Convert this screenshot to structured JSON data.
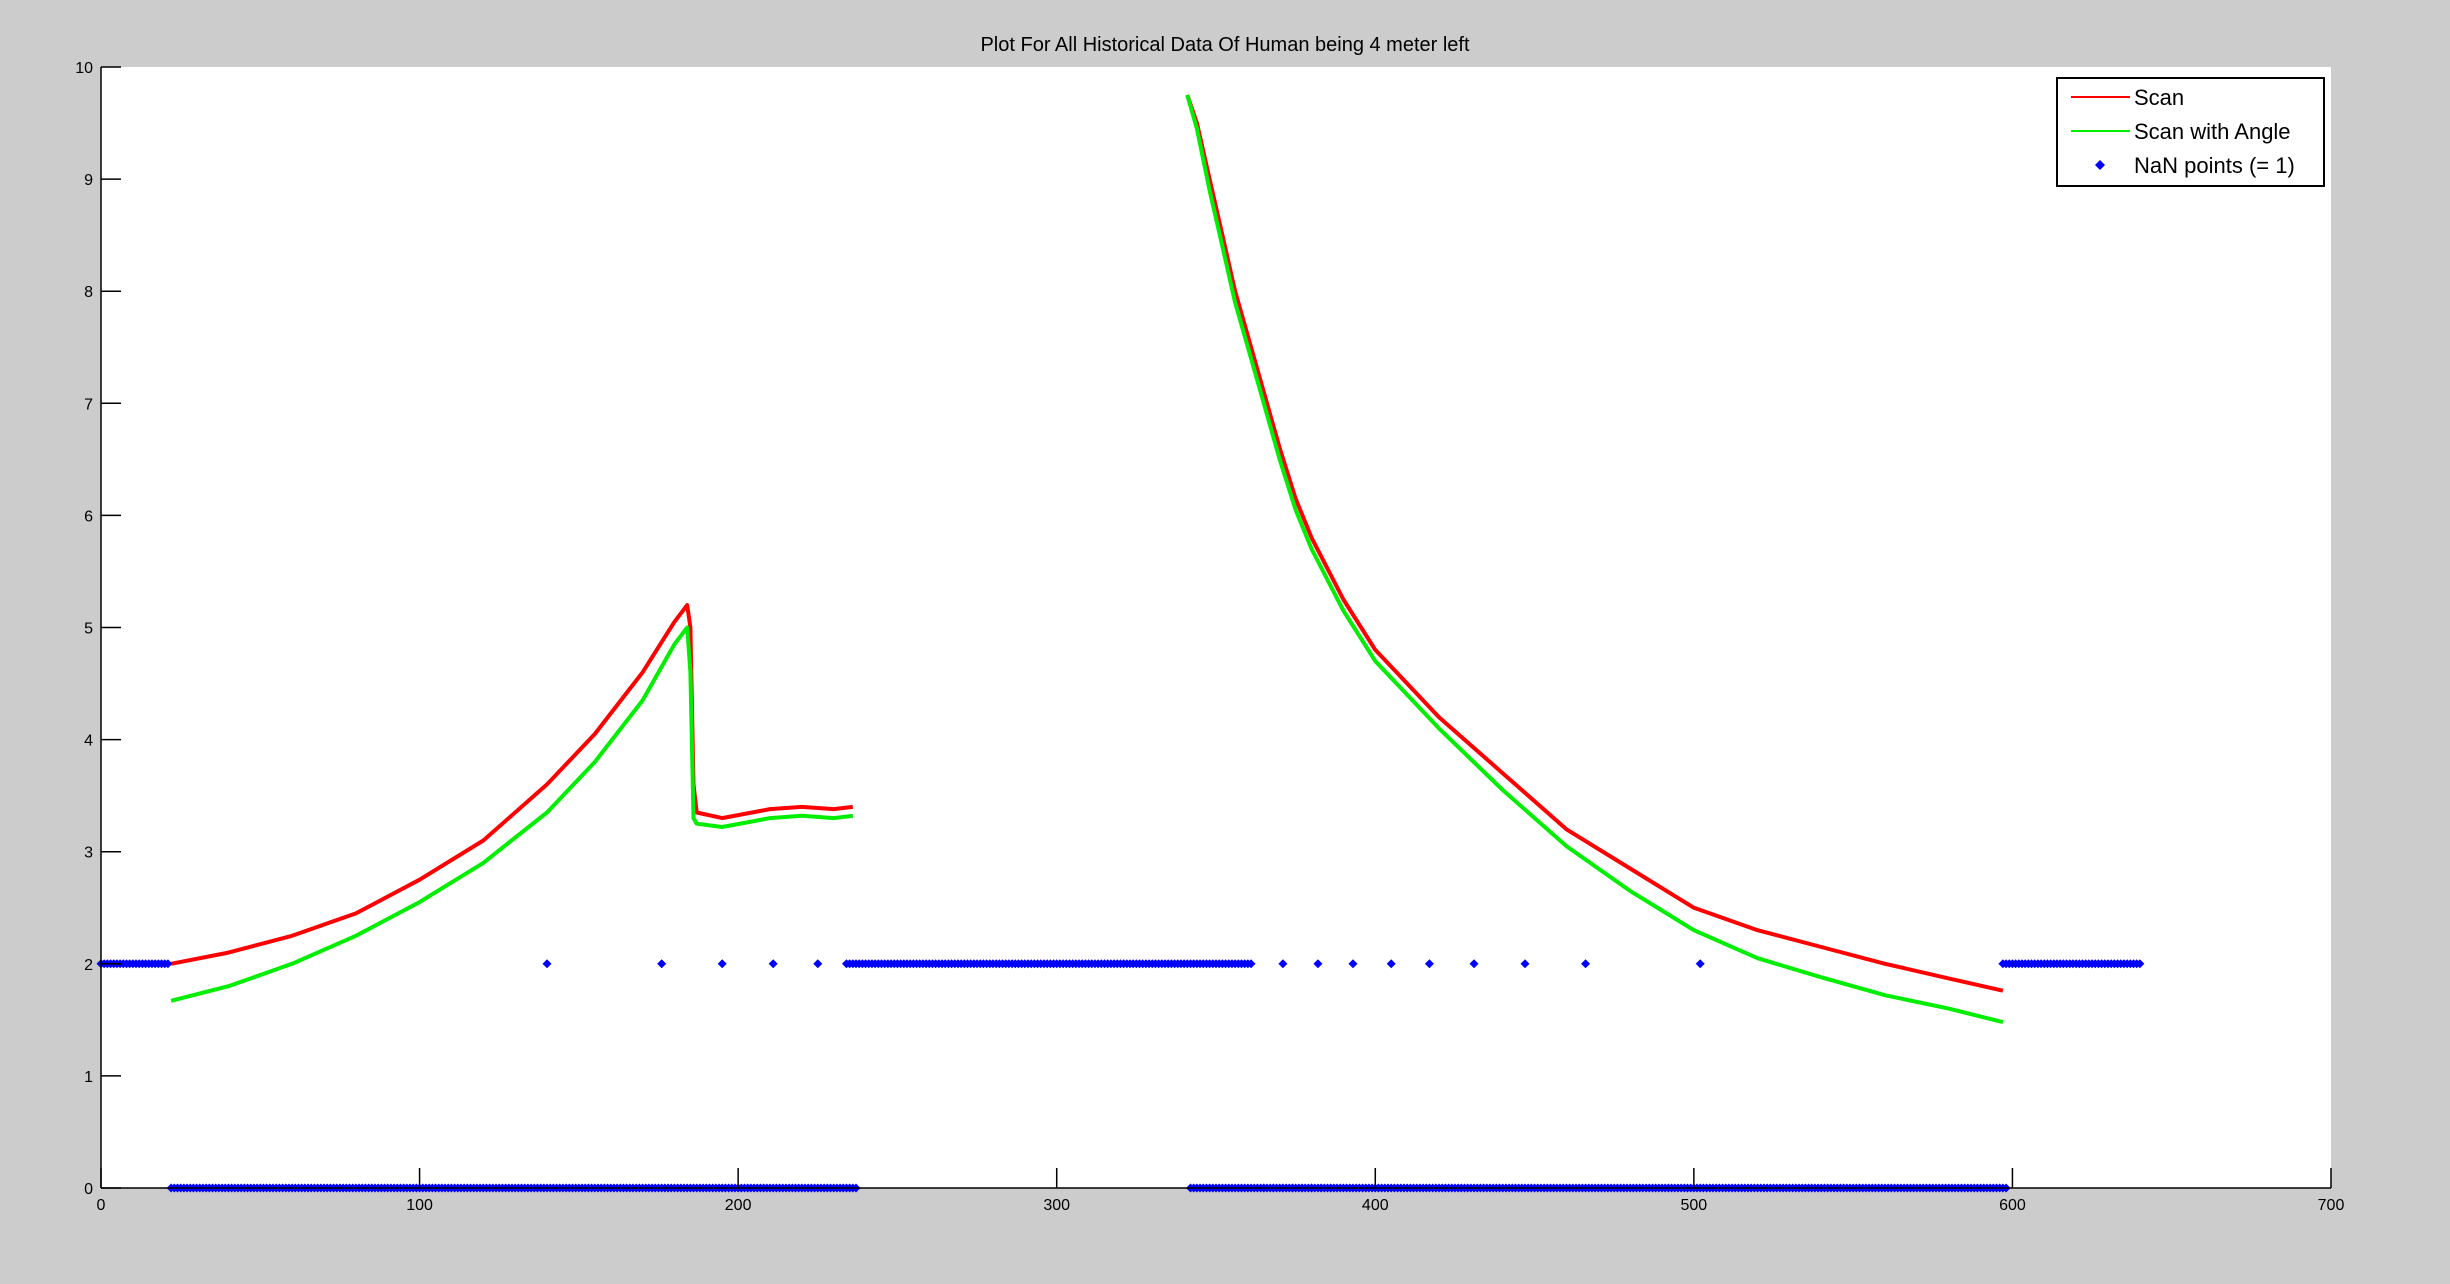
{
  "chart_data": {
    "type": "line",
    "title": "Plot For All Historical Data Of Human being 4 meter left",
    "xlabel": "",
    "ylabel": "",
    "xlim": [
      0,
      700
    ],
    "ylim": [
      0,
      10
    ],
    "xticks": [
      0,
      100,
      200,
      300,
      400,
      500,
      600,
      700
    ],
    "yticks": [
      0,
      1,
      2,
      3,
      4,
      5,
      6,
      7,
      8,
      9,
      10
    ],
    "grid": false,
    "legend_position": "top-right",
    "series": [
      {
        "name": "Scan",
        "color": "#ff0000",
        "segments": [
          [
            [
              22,
              2.0
            ],
            [
              40,
              2.1
            ],
            [
              60,
              2.25
            ],
            [
              80,
              2.45
            ],
            [
              100,
              2.75
            ],
            [
              120,
              3.1
            ],
            [
              140,
              3.6
            ],
            [
              155,
              4.05
            ],
            [
              170,
              4.6
            ],
            [
              180,
              5.05
            ],
            [
              184,
              5.2
            ],
            [
              185,
              5.0
            ],
            [
              186,
              3.6
            ],
            [
              187,
              3.35
            ],
            [
              195,
              3.3
            ],
            [
              210,
              3.38
            ],
            [
              220,
              3.4
            ],
            [
              230,
              3.38
            ],
            [
              236,
              3.4
            ]
          ],
          [
            [
              341,
              9.75
            ],
            [
              344,
              9.5
            ],
            [
              348,
              9.0
            ],
            [
              352,
              8.5
            ],
            [
              356,
              8.0
            ],
            [
              360,
              7.6
            ],
            [
              365,
              7.1
            ],
            [
              370,
              6.6
            ],
            [
              375,
              6.15
            ],
            [
              380,
              5.8
            ],
            [
              390,
              5.25
            ],
            [
              400,
              4.8
            ],
            [
              420,
              4.2
            ],
            [
              440,
              3.7
            ],
            [
              460,
              3.2
            ],
            [
              480,
              2.85
            ],
            [
              500,
              2.5
            ],
            [
              520,
              2.3
            ],
            [
              540,
              2.15
            ],
            [
              560,
              2.0
            ],
            [
              580,
              1.87
            ],
            [
              597,
              1.76
            ]
          ]
        ]
      },
      {
        "name": "Scan with Angle",
        "color": "#00ee00",
        "segments": [
          [
            [
              22,
              1.67
            ],
            [
              40,
              1.8
            ],
            [
              60,
              2.0
            ],
            [
              80,
              2.25
            ],
            [
              100,
              2.55
            ],
            [
              120,
              2.9
            ],
            [
              140,
              3.35
            ],
            [
              155,
              3.8
            ],
            [
              170,
              4.35
            ],
            [
              180,
              4.85
            ],
            [
              184,
              5.0
            ],
            [
              185,
              4.6
            ],
            [
              186,
              3.3
            ],
            [
              187,
              3.25
            ],
            [
              195,
              3.22
            ],
            [
              210,
              3.3
            ],
            [
              220,
              3.32
            ],
            [
              230,
              3.3
            ],
            [
              236,
              3.32
            ]
          ],
          [
            [
              341,
              9.75
            ],
            [
              344,
              9.45
            ],
            [
              348,
              8.9
            ],
            [
              352,
              8.4
            ],
            [
              356,
              7.9
            ],
            [
              360,
              7.5
            ],
            [
              365,
              7.0
            ],
            [
              370,
              6.5
            ],
            [
              375,
              6.05
            ],
            [
              380,
              5.7
            ],
            [
              390,
              5.15
            ],
            [
              400,
              4.7
            ],
            [
              420,
              4.1
            ],
            [
              440,
              3.55
            ],
            [
              460,
              3.05
            ],
            [
              480,
              2.65
            ],
            [
              500,
              2.3
            ],
            [
              520,
              2.05
            ],
            [
              540,
              1.88
            ],
            [
              560,
              1.72
            ],
            [
              580,
              1.6
            ],
            [
              597,
              1.48
            ]
          ]
        ]
      },
      {
        "name": "NaN points (= 1)",
        "color": "#0000ff",
        "marker": "diamond",
        "dense_runs": [
          {
            "y": 2,
            "x": [
              0,
              21
            ]
          },
          {
            "y": 2,
            "x": [
              234,
              361
            ]
          },
          {
            "y": 2,
            "x": [
              597,
              640
            ]
          },
          {
            "y": 0,
            "x": [
              22,
              237
            ]
          },
          {
            "y": 0,
            "x": [
              342,
              598
            ]
          }
        ],
        "sparse_points": [
          [
            140,
            2
          ],
          [
            176,
            2
          ],
          [
            195,
            2
          ],
          [
            211,
            2
          ],
          [
            225,
            2
          ],
          [
            371,
            2
          ],
          [
            382,
            2
          ],
          [
            393,
            2
          ],
          [
            405,
            2
          ],
          [
            417,
            2
          ],
          [
            431,
            2
          ],
          [
            447,
            2
          ],
          [
            466,
            2
          ],
          [
            502,
            2
          ],
          [
            365,
            0
          ],
          [
            368,
            0
          ],
          [
            371,
            0
          ],
          [
            374,
            0
          ],
          [
            377,
            0
          ],
          [
            380,
            0
          ],
          [
            383,
            0
          ],
          [
            386,
            0
          ]
        ],
        "dense_step": 1
      }
    ]
  }
}
